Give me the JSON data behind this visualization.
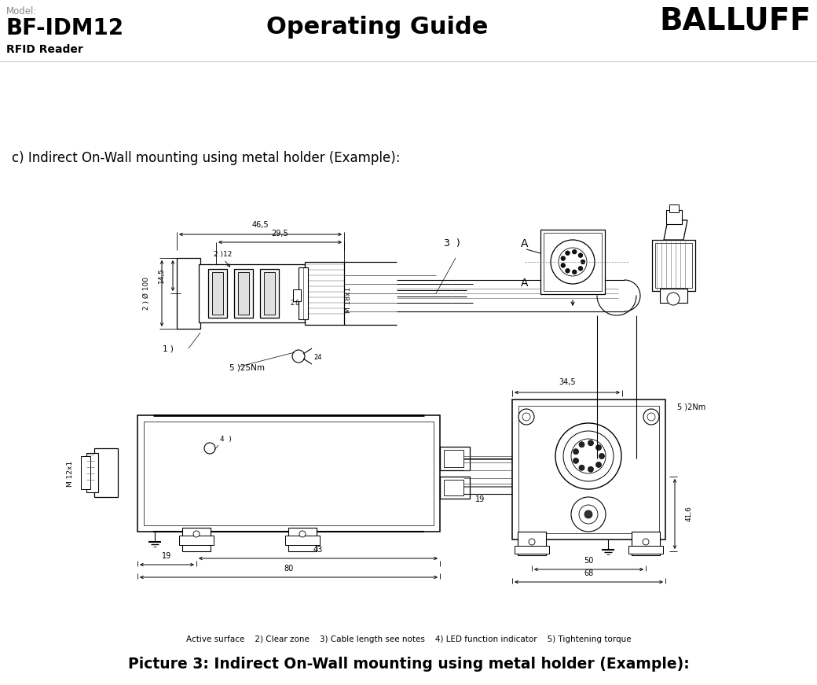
{
  "title_model_label": "Model:",
  "title_model": "BF-IDM12",
  "title_subtitle": "RFID Reader",
  "title_center": "Operating Guide",
  "title_logo": "BALLUFF",
  "section_label": "c) Indirect On-Wall mounting using metal holder (Example):",
  "caption_small": "Active surface    2) Clear zone    3) Cable length see notes    4) LED function indicator    5) Tightening torque",
  "caption_main": "Picture 3: Indirect On-Wall mounting using metal holder (Example):",
  "bg_color": "#ffffff",
  "line_color": "#000000",
  "gray_color": "#888888"
}
